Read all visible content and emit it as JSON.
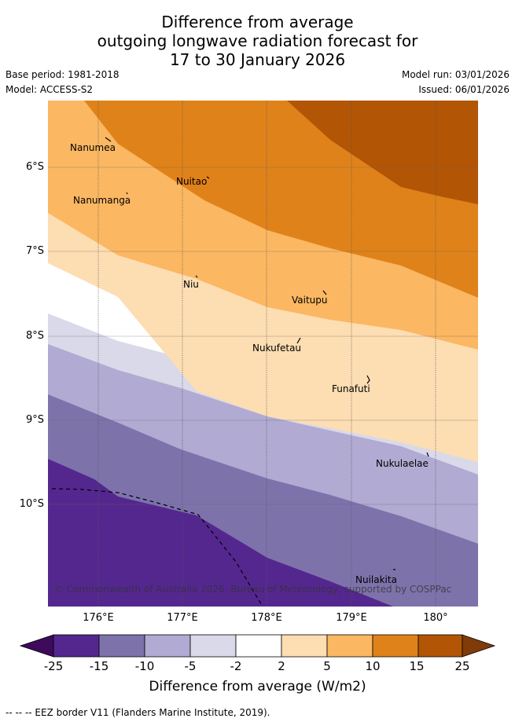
{
  "title": {
    "line1": "Difference from average",
    "line2": "outgoing longwave radiation forecast for",
    "line3": "17 to 30 January 2026"
  },
  "meta": {
    "base_period": "Base period: 1981-2018",
    "model": "Model: ACCESS-S2",
    "model_run": "Model run: 03/01/2026",
    "issued": "Issued: 06/01/2026"
  },
  "axes": {
    "lat_labels": [
      "6°S",
      "7°S",
      "8°S",
      "9°S",
      "10°S"
    ],
    "lon_labels": [
      "176°E",
      "177°E",
      "178°E",
      "179°E",
      "180°"
    ]
  },
  "places": {
    "nanumea": "Nanumea",
    "nanumanga": "Nanumanga",
    "nuitao": "Nuitao",
    "niu": "Niu",
    "vaitupu": "Vaitupu",
    "nukufetau": "Nukufetau",
    "funafuti": "Funafuti",
    "nukulaelae": "Nukulaelae",
    "nuilakita": "Nuilakita"
  },
  "copyright": "© Commonwealth of Australia 2026, Bureau of Meteorology, supported by COSPPac",
  "colorbar": {
    "ticks": [
      "-25",
      "-15",
      "-10",
      "-5",
      "-2",
      "2",
      "5",
      "10",
      "15",
      "25"
    ],
    "colors": [
      "#3f0a5c",
      "#54278f",
      "#7e72ab",
      "#b1aad2",
      "#d9d9ea",
      "#ffffff",
      "#fdddb2",
      "#fbb762",
      "#e0821a",
      "#b25505",
      "#7f3b08"
    ],
    "title": "Difference from average (W/m2)"
  },
  "footnote": "--  --  -- EEZ border V11 (Flanders Marine Institute, 2019)."
}
